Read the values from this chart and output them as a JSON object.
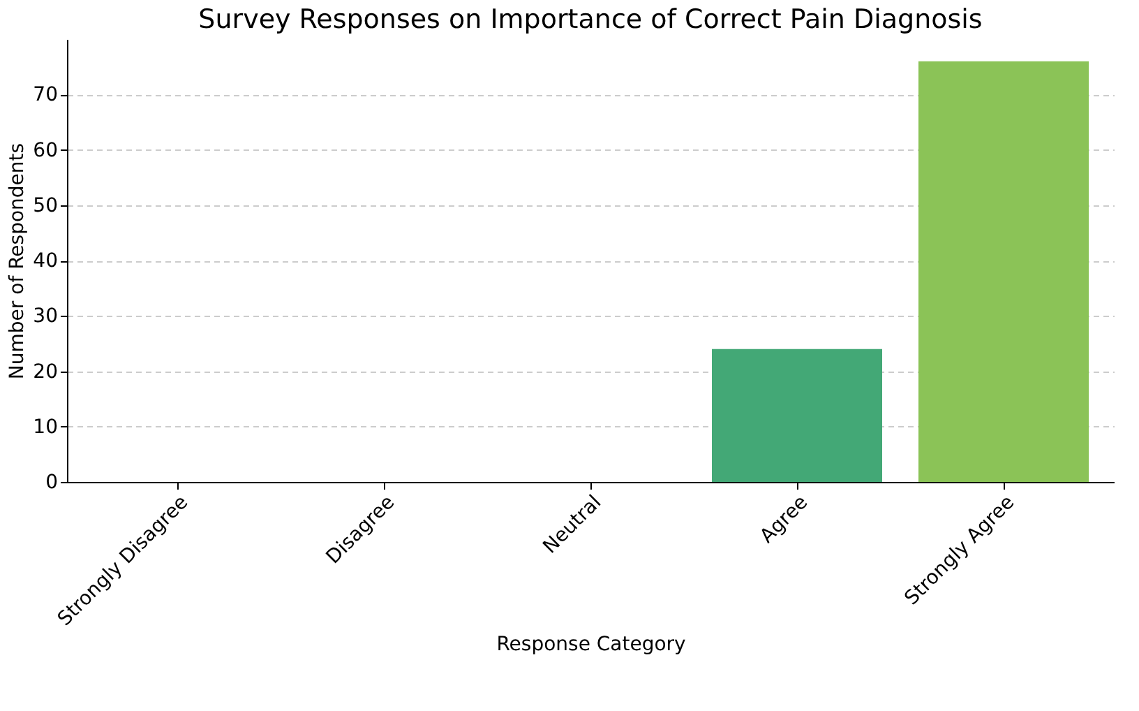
{
  "chart_data": {
    "type": "bar",
    "title": "Survey Responses on Importance of Correct Pain Diagnosis",
    "xlabel": "Response Category",
    "ylabel": "Number of Respondents",
    "categories": [
      "Strongly Disagree",
      "Disagree",
      "Neutral",
      "Agree",
      "Strongly Agree"
    ],
    "values": [
      0,
      0,
      0,
      24,
      76
    ],
    "colors": [
      "#3b528b",
      "#2c728e",
      "#21918c",
      "#43a876",
      "#8bc357"
    ],
    "ylim": [
      0,
      80
    ],
    "yticks": [
      0,
      10,
      20,
      30,
      40,
      50,
      60,
      70
    ],
    "grid": "y"
  }
}
